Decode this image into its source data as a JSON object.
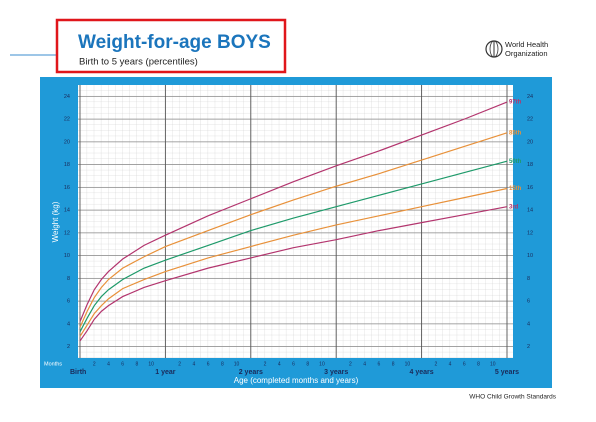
{
  "chart_data": {
    "type": "line",
    "title": "Weight-for-age BOYS",
    "subtitle": "Birth to 5 years (percentiles)",
    "logo_text": [
      "World Health",
      "Organization"
    ],
    "source": "WHO Child Growth Standards",
    "x_label": "Age (completed months and years)",
    "y_label": "Weight (kg)",
    "months_label": "Months",
    "x": [
      0,
      1,
      2,
      3,
      4,
      6,
      9,
      12,
      18,
      24,
      30,
      36,
      42,
      48,
      54,
      60
    ],
    "series": [
      {
        "name": "97th",
        "color": "#b3356e",
        "values": [
          4.2,
          5.7,
          7.0,
          7.9,
          8.6,
          9.7,
          10.9,
          11.8,
          13.5,
          15.0,
          16.5,
          17.9,
          19.2,
          20.6,
          22.0,
          23.5
        ]
      },
      {
        "name": "85th",
        "color": "#e8913a",
        "values": [
          3.7,
          5.1,
          6.3,
          7.2,
          7.9,
          8.9,
          9.9,
          10.8,
          12.2,
          13.6,
          14.9,
          16.1,
          17.2,
          18.4,
          19.6,
          20.8
        ]
      },
      {
        "name": "50th",
        "color": "#1e9a6a",
        "values": [
          3.3,
          4.5,
          5.6,
          6.4,
          7.0,
          7.9,
          8.9,
          9.6,
          10.9,
          12.2,
          13.3,
          14.3,
          15.3,
          16.3,
          17.3,
          18.3
        ]
      },
      {
        "name": "15th",
        "color": "#e8913a",
        "values": [
          2.9,
          3.9,
          4.9,
          5.6,
          6.2,
          7.1,
          7.9,
          8.6,
          9.8,
          10.8,
          11.8,
          12.7,
          13.5,
          14.3,
          15.1,
          15.9
        ]
      },
      {
        "name": "3rd",
        "color": "#b3356e",
        "values": [
          2.5,
          3.4,
          4.4,
          5.1,
          5.6,
          6.4,
          7.2,
          7.8,
          8.9,
          9.8,
          10.7,
          11.4,
          12.2,
          12.9,
          13.6,
          14.3
        ]
      }
    ],
    "xlim": [
      0,
      60
    ],
    "ylim": [
      1,
      25
    ],
    "yticks": [
      2,
      4,
      6,
      8,
      10,
      12,
      14,
      16,
      18,
      20,
      22,
      24
    ],
    "xticks": [
      {
        "value": 0,
        "label": "Birth"
      },
      {
        "value": 12,
        "label": "1 year"
      },
      {
        "value": 24,
        "label": "2 years"
      },
      {
        "value": 36,
        "label": "3 years"
      },
      {
        "value": 48,
        "label": "4 years"
      },
      {
        "value": 60,
        "label": "5 years"
      }
    ],
    "month_ticks": [
      {
        "value": 2,
        "label": "2"
      },
      {
        "value": 4,
        "label": "4"
      },
      {
        "value": 6,
        "label": "6"
      },
      {
        "value": 8,
        "label": "8"
      },
      {
        "value": 10,
        "label": "10"
      },
      {
        "value": 14,
        "label": "2"
      },
      {
        "value": 16,
        "label": "4"
      },
      {
        "value": 18,
        "label": "6"
      },
      {
        "value": 20,
        "label": "8"
      },
      {
        "value": 22,
        "label": "10"
      },
      {
        "value": 26,
        "label": "2"
      },
      {
        "value": 28,
        "label": "4"
      },
      {
        "value": 30,
        "label": "6"
      },
      {
        "value": 32,
        "label": "8"
      },
      {
        "value": 34,
        "label": "10"
      },
      {
        "value": 38,
        "label": "2"
      },
      {
        "value": 40,
        "label": "4"
      },
      {
        "value": 42,
        "label": "6"
      },
      {
        "value": 44,
        "label": "8"
      },
      {
        "value": 46,
        "label": "10"
      },
      {
        "value": 50,
        "label": "2"
      },
      {
        "value": 52,
        "label": "4"
      },
      {
        "value": 54,
        "label": "6"
      },
      {
        "value": 56,
        "label": "8"
      },
      {
        "value": 58,
        "label": "10"
      }
    ],
    "grid": true
  }
}
